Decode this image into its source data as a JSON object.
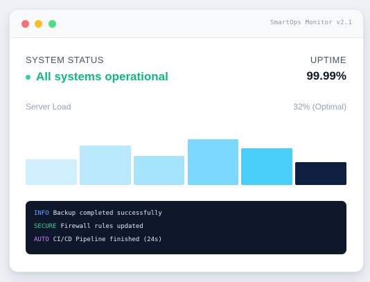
{
  "window": {
    "app_title": "SmartOps Monitor v2.1",
    "controls": [
      {
        "name": "close",
        "color": "#f87171"
      },
      {
        "name": "minimize",
        "color": "#fbbf24"
      },
      {
        "name": "maximize",
        "color": "#4ade80"
      }
    ]
  },
  "status": {
    "label": "SYSTEM STATUS",
    "text": "All systems operational",
    "color": "#10b981"
  },
  "uptime": {
    "label": "UPTIME",
    "value": "99.99%"
  },
  "server_load": {
    "label": "Server Load",
    "value": "32% (Optimal)",
    "bars": [
      {
        "level": 0.51,
        "color": "#cfeffd"
      },
      {
        "level": 0.78,
        "color": "#bae9fd"
      },
      {
        "level": 0.58,
        "color": "#a5e4fc"
      },
      {
        "level": 0.9,
        "color": "#79d8fb"
      },
      {
        "level": 0.72,
        "color": "#48cef8"
      },
      {
        "level": 0.45,
        "color": "#0f1f3f"
      }
    ]
  },
  "log": {
    "entries": [
      {
        "tag": "INFO",
        "tag_color": "#60a5fa",
        "message": "Backup completed successfully"
      },
      {
        "tag": "SECURE",
        "tag_color": "#34d399",
        "message": "Firewall rules updated"
      },
      {
        "tag": "AUTO",
        "tag_color": "#c084fc",
        "message": "CI/CD Pipeline finished (24s)"
      }
    ]
  }
}
